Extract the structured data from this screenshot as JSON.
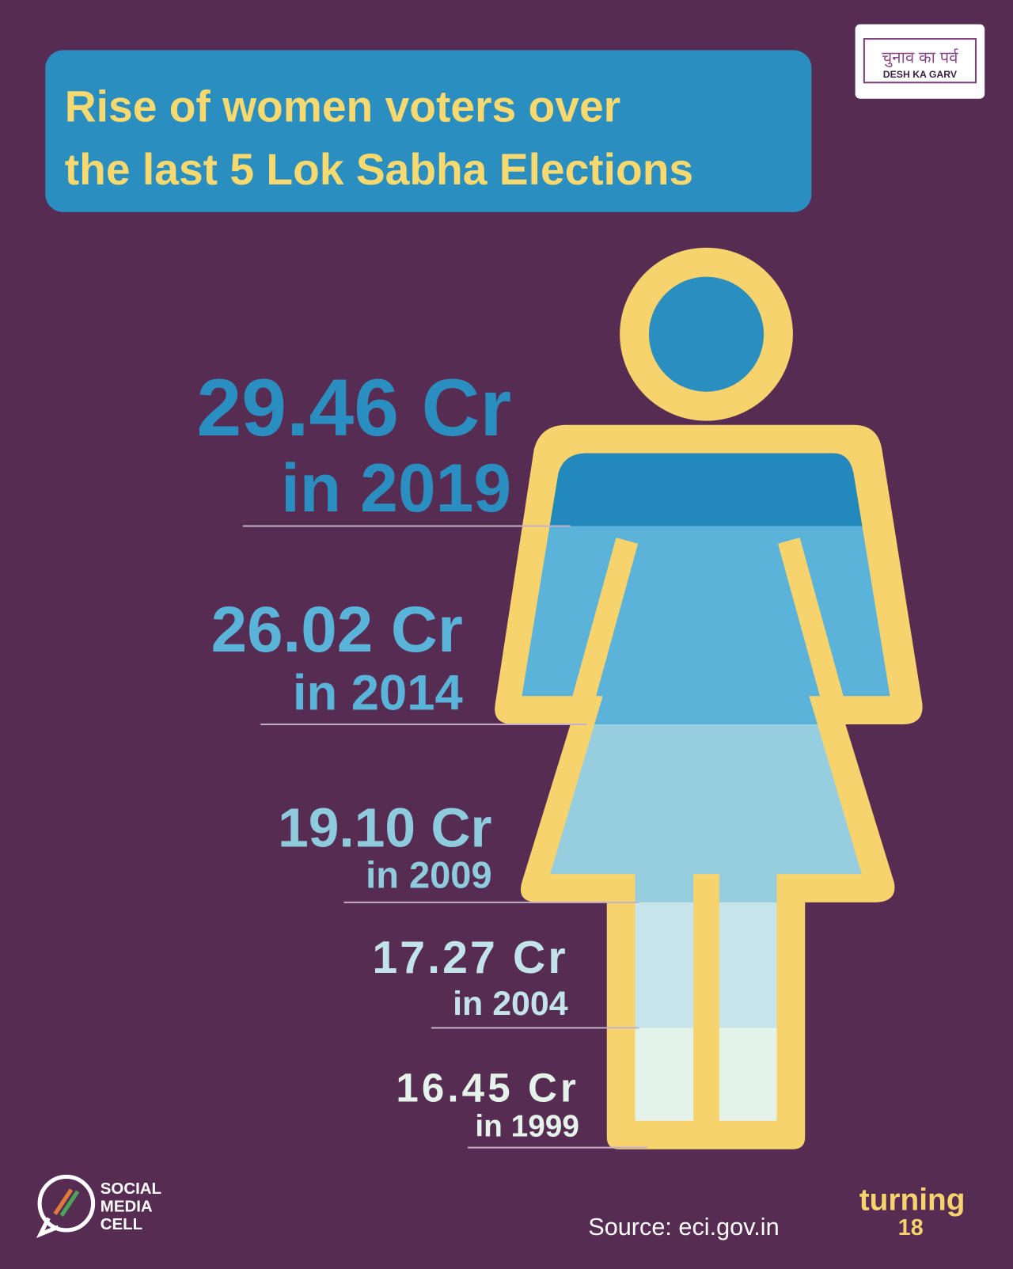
{
  "header": {
    "title_lines": [
      "Rise of women voters over",
      "the last 5 Lok Sabha Elections"
    ]
  },
  "logo": {
    "hindi": "चुनाव का पर्व",
    "tagline": "DESH KA GARV"
  },
  "stats": [
    {
      "value": "29.46 Cr",
      "year": "in 2019"
    },
    {
      "value": "26.02 Cr",
      "year": "in 2014"
    },
    {
      "value": "19.10 Cr",
      "year": "in 2009"
    },
    {
      "value": "17.27 Cr",
      "year": "in 2004"
    },
    {
      "value": "16.45 Cr",
      "year": "in 1999"
    }
  ],
  "footer": {
    "cell_lines": [
      "SOCIAL",
      "MEDIA",
      "CELL"
    ],
    "source": "Source: eci.gov.in",
    "brand": "turning",
    "brand_number": "18"
  }
}
